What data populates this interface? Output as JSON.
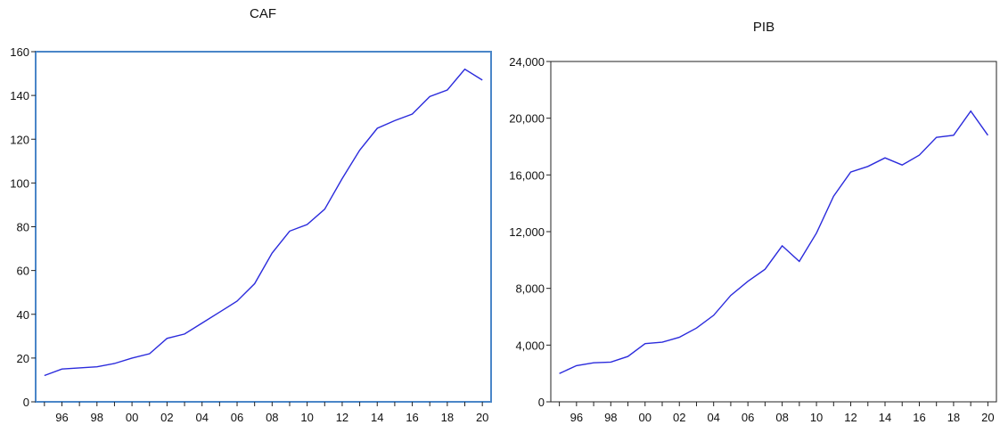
{
  "chart_data": [
    {
      "type": "line",
      "title": "CAF",
      "xlabel": "",
      "ylabel": "",
      "ylim": [
        0,
        160
      ],
      "yticks": [
        0,
        20,
        40,
        60,
        80,
        100,
        120,
        140,
        160
      ],
      "ytick_labels": [
        "0",
        "20",
        "40",
        "60",
        "80",
        "100",
        "120",
        "140",
        "160"
      ],
      "xlim": [
        1994.5,
        2020.5
      ],
      "xticks": [
        1996,
        1998,
        2000,
        2002,
        2004,
        2006,
        2008,
        2010,
        2012,
        2014,
        2016,
        2018,
        2020
      ],
      "xtick_labels": [
        "96",
        "98",
        "00",
        "02",
        "04",
        "06",
        "08",
        "10",
        "12",
        "14",
        "16",
        "18",
        "20"
      ],
      "grid": false,
      "line_color": "#2b2bdc",
      "frame_color": "#4a86c8",
      "x": [
        1995,
        1996,
        1997,
        1998,
        1999,
        2000,
        2001,
        2002,
        2003,
        2004,
        2005,
        2006,
        2007,
        2008,
        2009,
        2010,
        2011,
        2012,
        2013,
        2014,
        2015,
        2016,
        2017,
        2018,
        2019,
        2020
      ],
      "series": [
        {
          "values": [
            12,
            15,
            15.5,
            16,
            17.5,
            20,
            22,
            29,
            31,
            36,
            41,
            46,
            54,
            68,
            78,
            81,
            88,
            102,
            115,
            125,
            128.5,
            131.5,
            139.5,
            142.5,
            152,
            147
          ]
        }
      ]
    },
    {
      "type": "line",
      "title": "PIB",
      "xlabel": "",
      "ylabel": "",
      "ylim": [
        0,
        24000
      ],
      "yticks": [
        0,
        4000,
        8000,
        12000,
        16000,
        20000,
        24000
      ],
      "ytick_labels": [
        "0",
        "4,000",
        "8,000",
        "12,000",
        "16,000",
        "20,000",
        "24,000"
      ],
      "xlim": [
        1994.5,
        2020.5
      ],
      "xticks": [
        1996,
        1998,
        2000,
        2002,
        2004,
        2006,
        2008,
        2010,
        2012,
        2014,
        2016,
        2018,
        2020
      ],
      "xtick_labels": [
        "96",
        "98",
        "00",
        "02",
        "04",
        "06",
        "08",
        "10",
        "12",
        "14",
        "16",
        "18",
        "20"
      ],
      "grid": false,
      "line_color": "#2b2bdc",
      "frame_color": "#222222",
      "x": [
        1995,
        1996,
        1997,
        1998,
        1999,
        2000,
        2001,
        2002,
        2003,
        2004,
        2005,
        2006,
        2007,
        2008,
        2009,
        2010,
        2011,
        2012,
        2013,
        2014,
        2015,
        2016,
        2017,
        2018,
        2019,
        2020
      ],
      "series": [
        {
          "values": [
            2000,
            2550,
            2750,
            2800,
            3200,
            4100,
            4200,
            4550,
            5200,
            6100,
            7500,
            8500,
            9350,
            11000,
            9900,
            11900,
            14500,
            16200,
            16600,
            17200,
            16700,
            17400,
            18650,
            18800,
            20500,
            18800
          ]
        }
      ]
    }
  ]
}
